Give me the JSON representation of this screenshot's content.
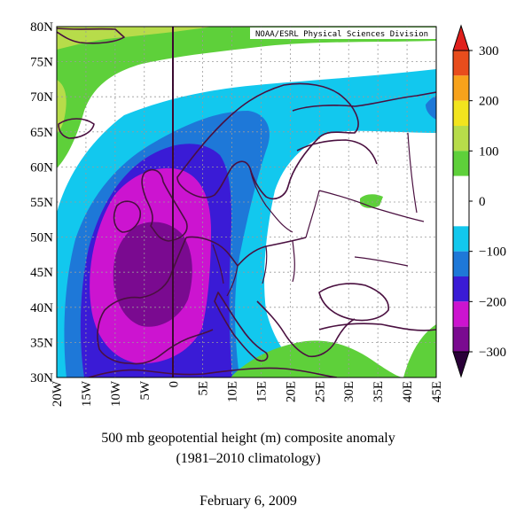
{
  "map": {
    "credit": "NOAA/ESRL Physical Sciences Division",
    "lat_labels": [
      "80N",
      "75N",
      "70N",
      "65N",
      "60N",
      "55N",
      "50N",
      "45N",
      "40N",
      "35N",
      "30N"
    ],
    "lon_labels": [
      "20W",
      "15W",
      "10W",
      "5W",
      "0",
      "5E",
      "10E",
      "15E",
      "20E",
      "25E",
      "30E",
      "35E",
      "40E",
      "45E"
    ],
    "extent": {
      "lon": [
        -20,
        45
      ],
      "lat": [
        30,
        80
      ]
    },
    "grid": true
  },
  "colorbar": {
    "tick_labels": [
      "300",
      "200",
      "100",
      "0",
      "−100",
      "−200",
      "−300"
    ],
    "tick_values": [
      300,
      200,
      100,
      0,
      -100,
      -200,
      -300
    ],
    "bins": [
      {
        "range": [
          250,
          300
        ],
        "color": "#e84d1c"
      },
      {
        "range": [
          200,
          250
        ],
        "color": "#f7a21b"
      },
      {
        "range": [
          150,
          200
        ],
        "color": "#f2e41e"
      },
      {
        "range": [
          100,
          150
        ],
        "color": "#b7dc4a"
      },
      {
        "range": [
          50,
          100
        ],
        "color": "#5ed03a"
      },
      {
        "range": [
          -50,
          50
        ],
        "color": "#ffffff"
      },
      {
        "range": [
          -100,
          -50
        ],
        "color": "#12c8ee"
      },
      {
        "range": [
          -150,
          -100
        ],
        "color": "#1e78d8"
      },
      {
        "range": [
          -200,
          -150
        ],
        "color": "#3a1bd6"
      },
      {
        "range": [
          -250,
          -200
        ],
        "color": "#cc14d0"
      },
      {
        "range": [
          -300,
          -250
        ],
        "color": "#7a0a90"
      }
    ],
    "extend_max_color": "#e0201c",
    "extend_min_color": "#2a0038"
  },
  "caption": {
    "line1": "500 mb geopotential height (m) composite anomaly",
    "line2": "(1981–2010 climatology)"
  },
  "date": "February 6, 2009"
}
